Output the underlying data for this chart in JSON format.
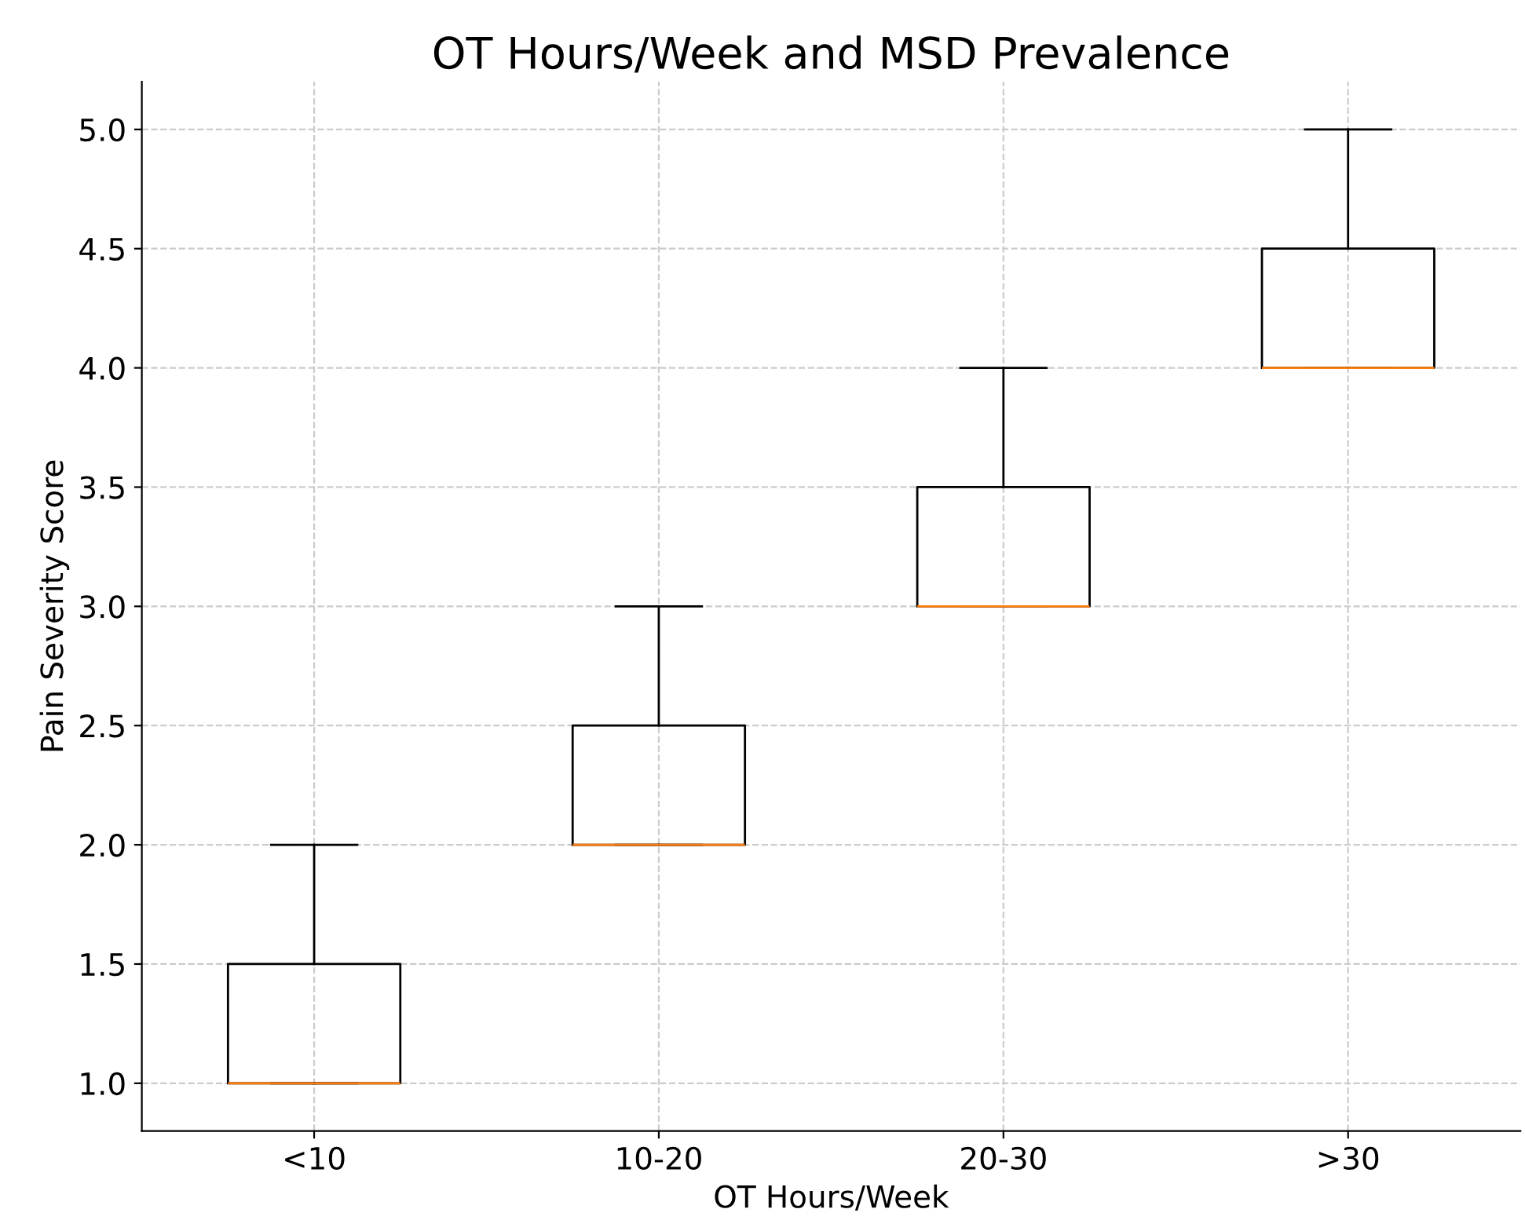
{
  "chart_data": {
    "type": "box",
    "title": "OT Hours/Week and MSD Prevalence",
    "xlabel": "OT Hours/Week",
    "ylabel": "Pain Severity Score",
    "categories": [
      "<10",
      "10-20",
      "20-30",
      ">30"
    ],
    "boxes": [
      {
        "low": 1.0,
        "q1": 1.0,
        "median": 1.0,
        "q3": 1.5,
        "high": 2.0
      },
      {
        "low": 2.0,
        "q1": 2.0,
        "median": 2.0,
        "q3": 2.5,
        "high": 3.0
      },
      {
        "low": 3.0,
        "q1": 3.0,
        "median": 3.0,
        "q3": 3.5,
        "high": 4.0
      },
      {
        "low": 4.0,
        "q1": 4.0,
        "median": 4.0,
        "q3": 4.5,
        "high": 5.0
      }
    ],
    "color": "#ff7f0e",
    "ylim": [
      0.8,
      5.2
    ],
    "yticks": [
      {
        "value": 1.0,
        "label": "1.0"
      },
      {
        "value": 1.5,
        "label": "1.5"
      },
      {
        "value": 2.0,
        "label": "2.0"
      },
      {
        "value": 2.5,
        "label": "2.5"
      },
      {
        "value": 3.0,
        "label": "3.0"
      },
      {
        "value": 3.5,
        "label": "3.5"
      },
      {
        "value": 4.0,
        "label": "4.0"
      },
      {
        "value": 4.5,
        "label": "4.5"
      },
      {
        "value": 5.0,
        "label": "5.0"
      }
    ],
    "grid": true,
    "line_style": "dashed"
  }
}
